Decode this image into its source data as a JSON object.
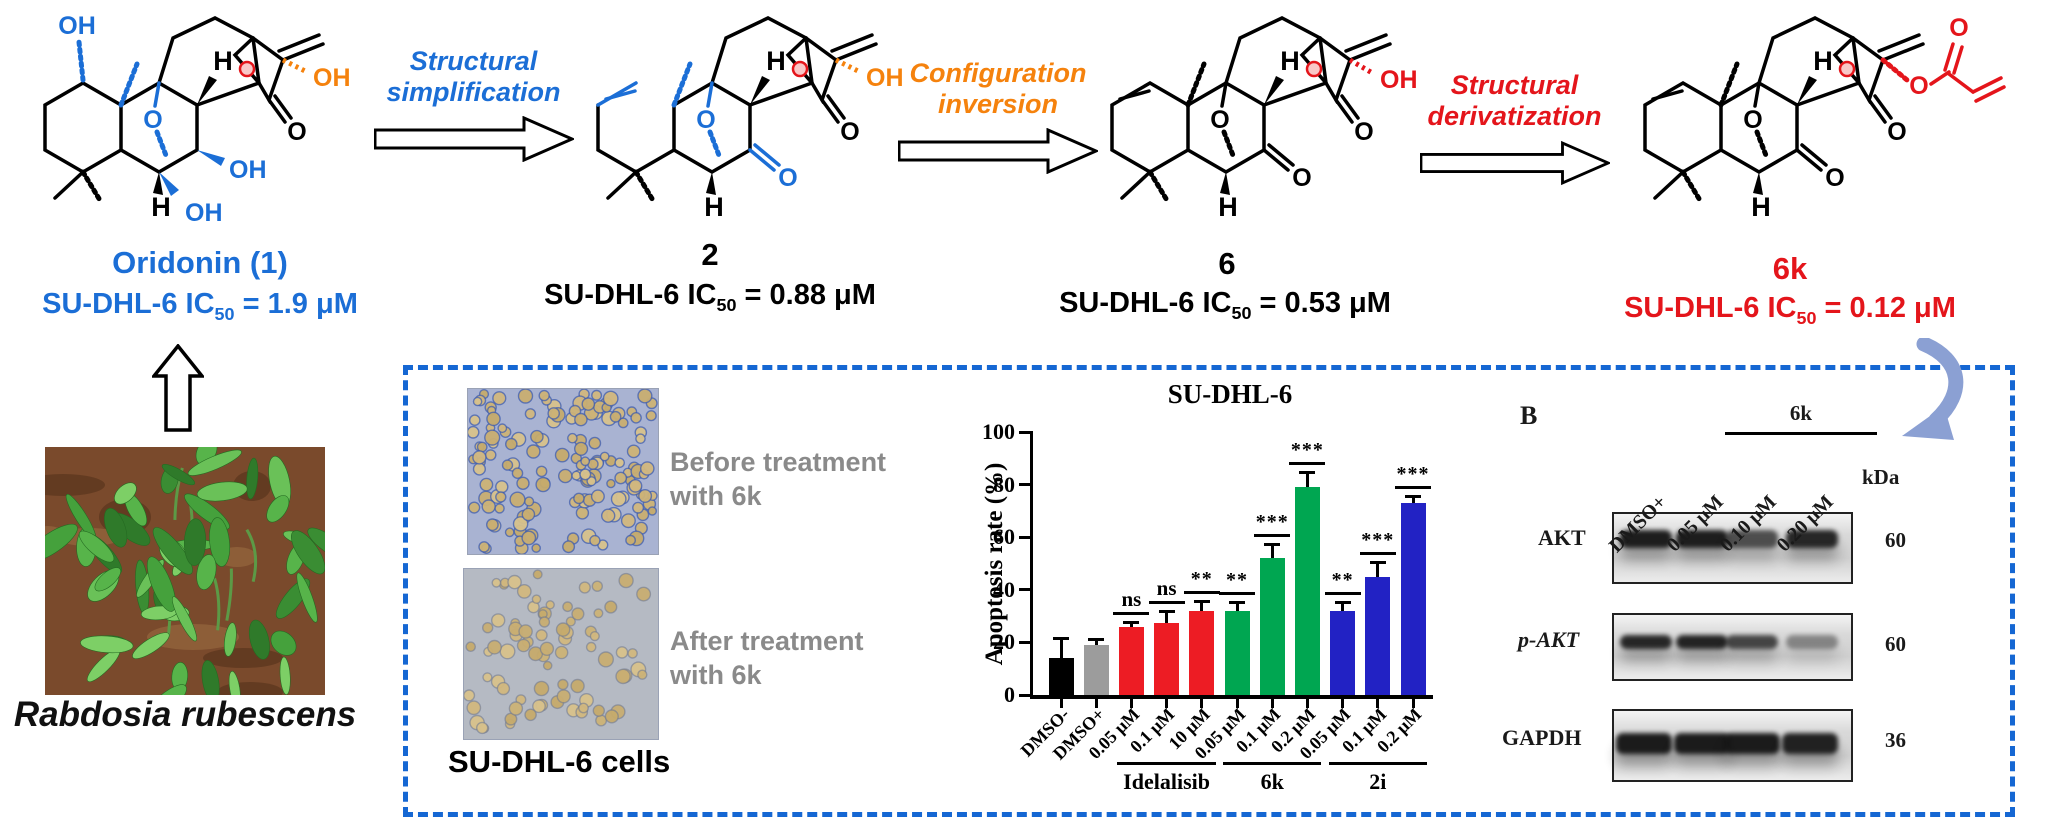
{
  "colors": {
    "structure_blue": "#1b6ed6",
    "orange": "#f5820d",
    "red": "#e4151b",
    "box_dash_blue": "#1567d3",
    "gray_label": "#8a8a8a",
    "curved_arrow_blue": "#8ba0d3",
    "bar_black": "#000000",
    "bar_gray": "#9c9c9c",
    "bar_red": "#ed1c24",
    "bar_green": "#00a651",
    "bar_blue": "#2222c4"
  },
  "compounds": [
    {
      "name": "Oridonin (1)",
      "ic_prefix": "SU-DHL-6  IC",
      "ic_sub": "50",
      "ic_value": " = 1.9 μM",
      "atoms": {
        "oh_topleft": "OH",
        "h_top": "H",
        "h_bottom": "H",
        "o_bridge": "O",
        "oh_bottom": "OH",
        "oh_mid": "OH",
        "oh_right": "OH",
        "o_ketone": "O"
      }
    },
    {
      "name": "2",
      "ic_prefix": "SU-DHL-6  IC",
      "ic_sub": "50",
      "ic_value": " = 0.88 μM",
      "atoms": {
        "h_top": "H",
        "h_bottom": "H",
        "o_bridge": "O",
        "o_ketone": "O",
        "o_ketone2": "O",
        "oh_right": "OH"
      }
    },
    {
      "name": "6",
      "ic_prefix": "SU-DHL-6  IC",
      "ic_sub": "50",
      "ic_value": " = 0.53 μM",
      "atoms": {
        "h_top": "H",
        "h_bottom": "H",
        "o_bridge": "O",
        "o_ketone": "O",
        "o_ketone2": "O",
        "oh_right": "OH"
      }
    },
    {
      "name": "6k",
      "ic_prefix": "SU-DHL-6  IC",
      "ic_sub": "50",
      "ic_value": " = 0.12 μM",
      "atoms": {
        "h_top": "H",
        "h_bottom": "H",
        "o_bridge": "O",
        "o_ketone": "O",
        "o_ketone2": "O",
        "o_ester": "O",
        "o_ester_carbonyl": "O"
      }
    }
  ],
  "transforms": [
    {
      "line1": "Structural",
      "line2": "simplification"
    },
    {
      "line1": "Configuration",
      "line2": "inversion"
    },
    {
      "line1": "Structural",
      "line2": "derivatization"
    }
  ],
  "plant": {
    "caption": "Rabdosia rubescens"
  },
  "cells_panel": {
    "before_line1": "Before treatment",
    "before_line2": "with 6k",
    "after_line1": "After treatment",
    "after_line2": "with 6k",
    "caption": "SU-DHL-6 cells"
  },
  "chart_data": {
    "type": "bar",
    "title": "SU-DHL-6",
    "ylabel": "Apoptosis rate (%)",
    "xlabel": "",
    "ylim": [
      0,
      100
    ],
    "yticks": [
      0,
      20,
      40,
      60,
      80,
      100
    ],
    "grid": false,
    "legend": "none",
    "categories": [
      "DMSO-",
      "DMSO+",
      "0.05 μM",
      "0.1 μM",
      "10 μM",
      "0.05 μM",
      "0.1 μM",
      "0.2 μM",
      "0.05 μM",
      "0.1 μM",
      "0.2 μM"
    ],
    "values": [
      14,
      19,
      26,
      27.5,
      32,
      32,
      52,
      79,
      32,
      45,
      73
    ],
    "errors": [
      7,
      1.5,
      1,
      3.5,
      3,
      2.5,
      4.5,
      5,
      2.5,
      5,
      2
    ],
    "bar_colors": [
      "#000000",
      "#9c9c9c",
      "#ed1c24",
      "#ed1c24",
      "#ed1c24",
      "#00a651",
      "#00a651",
      "#00a651",
      "#2222c4",
      "#2222c4",
      "#2222c4"
    ],
    "significance": [
      "",
      "",
      "ns",
      "ns",
      "**",
      "**",
      "***",
      "***",
      "**",
      "***",
      "***"
    ],
    "groups": [
      {
        "label": "Idelalisib",
        "from": 2,
        "to": 4
      },
      {
        "label": "6k",
        "from": 5,
        "to": 7
      },
      {
        "label": "2i",
        "from": 8,
        "to": 10
      }
    ]
  },
  "blot": {
    "panel_label": "B",
    "group_label": "6k",
    "lanes": [
      "DMSO+",
      "0.05 μM",
      "0.10 μM",
      "0.20 μM"
    ],
    "unit": "kDa",
    "rows": [
      {
        "label": "AKT",
        "kda": "60"
      },
      {
        "label": "p-AKT",
        "kda": "60"
      },
      {
        "label": "GAPDH",
        "kda": "36"
      }
    ]
  }
}
